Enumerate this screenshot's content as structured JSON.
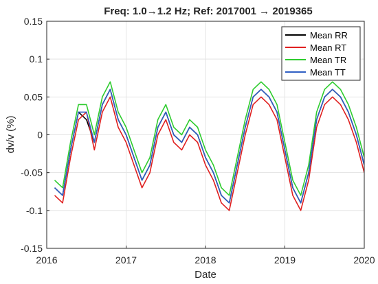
{
  "chart_data": {
    "type": "line",
    "title": "Freq: 1.0→1.2 Hz; Ref: 2017001 → 2019365",
    "xlabel": "Date",
    "ylabel": "dv/v (%)",
    "xlim": [
      2016.0,
      2020.0
    ],
    "ylim": [
      -0.15,
      0.15
    ],
    "x_ticks": [
      2016,
      2017,
      2018,
      2019,
      2020
    ],
    "x_tick_labels": [
      "2016",
      "2017",
      "2018",
      "2019",
      "2020"
    ],
    "y_ticks": [
      -0.15,
      -0.1,
      -0.05,
      0,
      0.05,
      0.1,
      0.15
    ],
    "y_tick_labels": [
      "-0.15",
      "-0.1",
      "-0.05",
      "0",
      "0.05",
      "0.1",
      "0.15"
    ],
    "grid": true,
    "legend_position": "top-right",
    "x": [
      2016.1,
      2016.2,
      2016.3,
      2016.4,
      2016.5,
      2016.6,
      2016.7,
      2016.8,
      2016.9,
      2017.0,
      2017.1,
      2017.2,
      2017.3,
      2017.4,
      2017.5,
      2017.6,
      2017.7,
      2017.8,
      2017.9,
      2018.0,
      2018.1,
      2018.2,
      2018.3,
      2018.4,
      2018.5,
      2018.6,
      2018.7,
      2018.8,
      2018.9,
      2019.0,
      2019.1,
      2019.2,
      2019.3,
      2019.4,
      2019.5,
      2019.6,
      2019.7,
      2019.8,
      2019.9,
      2020.0
    ],
    "series": [
      {
        "name": "Mean RR",
        "color": "#000000",
        "values": [
          -0.07,
          -0.08,
          -0.02,
          0.03,
          0.02,
          -0.01,
          0.04,
          0.06,
          0.02,
          0.0,
          -0.03,
          -0.06,
          -0.04,
          0.01,
          0.03,
          0.0,
          -0.01,
          0.01,
          0.0,
          -0.03,
          -0.05,
          -0.08,
          -0.09,
          -0.04,
          0.01,
          0.05,
          0.06,
          0.05,
          0.03,
          -0.02,
          -0.07,
          -0.09,
          -0.05,
          0.02,
          0.05,
          0.06,
          0.05,
          0.03,
          0.0,
          -0.04
        ]
      },
      {
        "name": "Mean RT",
        "color": "#e02020",
        "values": [
          -0.08,
          -0.09,
          -0.03,
          0.02,
          0.03,
          -0.02,
          0.03,
          0.05,
          0.01,
          -0.01,
          -0.04,
          -0.07,
          -0.05,
          0.0,
          0.02,
          -0.01,
          -0.02,
          0.0,
          -0.01,
          -0.04,
          -0.06,
          -0.09,
          -0.1,
          -0.05,
          0.0,
          0.04,
          0.05,
          0.04,
          0.02,
          -0.03,
          -0.08,
          -0.1,
          -0.06,
          0.01,
          0.04,
          0.05,
          0.04,
          0.02,
          -0.01,
          -0.05
        ]
      },
      {
        "name": "Mean TR",
        "color": "#2ecc2e",
        "values": [
          -0.06,
          -0.07,
          -0.01,
          0.04,
          0.04,
          0.0,
          0.05,
          0.07,
          0.03,
          0.01,
          -0.02,
          -0.05,
          -0.03,
          0.02,
          0.04,
          0.01,
          0.0,
          0.02,
          0.01,
          -0.02,
          -0.04,
          -0.07,
          -0.08,
          -0.03,
          0.02,
          0.06,
          0.07,
          0.06,
          0.04,
          -0.01,
          -0.06,
          -0.08,
          -0.04,
          0.03,
          0.06,
          0.07,
          0.06,
          0.04,
          0.01,
          -0.03
        ]
      },
      {
        "name": "Mean TT",
        "color": "#2f5fc4",
        "values": [
          -0.07,
          -0.08,
          -0.02,
          0.03,
          0.03,
          -0.01,
          0.04,
          0.06,
          0.02,
          0.0,
          -0.03,
          -0.06,
          -0.04,
          0.01,
          0.03,
          0.0,
          -0.01,
          0.01,
          0.0,
          -0.03,
          -0.05,
          -0.08,
          -0.09,
          -0.04,
          0.01,
          0.05,
          0.06,
          0.05,
          0.03,
          -0.02,
          -0.07,
          -0.09,
          -0.05,
          0.02,
          0.05,
          0.06,
          0.05,
          0.03,
          0.0,
          -0.04
        ]
      }
    ]
  }
}
